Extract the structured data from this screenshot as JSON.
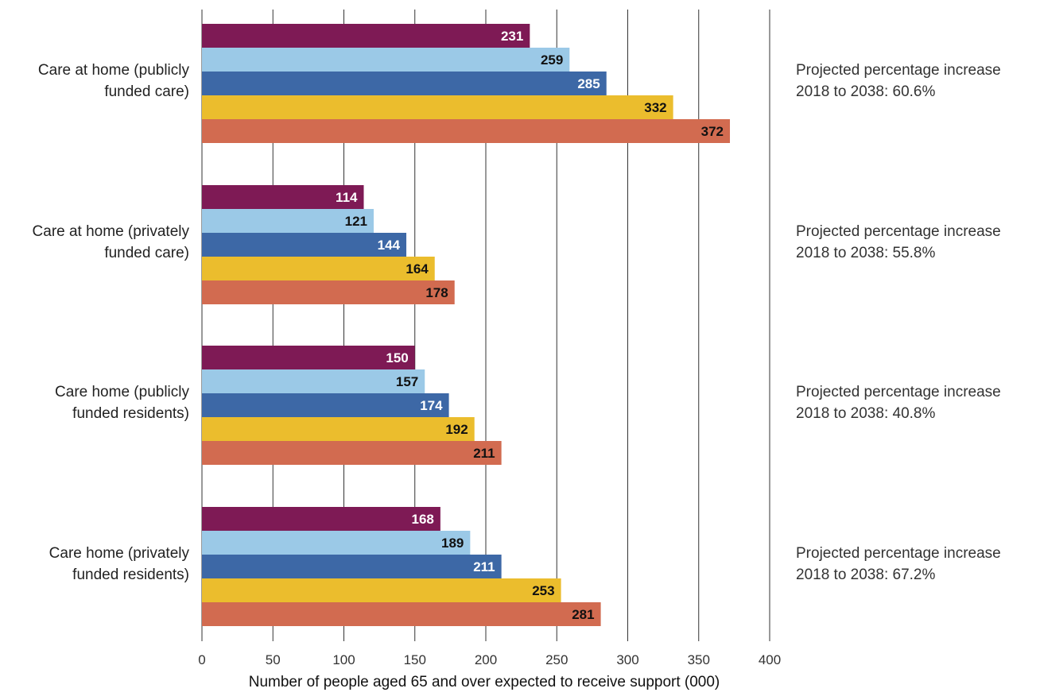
{
  "chart_data": {
    "type": "bar",
    "orientation": "horizontal",
    "title": "",
    "xlabel": "Number of people aged 65 and over expected to receive support (000)",
    "ylabel": "",
    "xlim": [
      0,
      400
    ],
    "xticks": [
      0,
      50,
      100,
      150,
      200,
      250,
      300,
      350,
      400
    ],
    "grid": "vertical",
    "legend": "none",
    "categories": [
      "Care at home (publicly funded care)",
      "Care at home (privately funded care)",
      "Care home (publicly funded residents)",
      "Care home (privately funded residents)"
    ],
    "category_label_lines": [
      [
        "Care at home (publicly",
        "funded care)"
      ],
      [
        "Care at home (privately",
        "funded care)"
      ],
      [
        "Care home (publicly",
        "funded residents)"
      ],
      [
        "Care home (privately",
        "funded residents)"
      ]
    ],
    "series": [
      {
        "color": "#7e1a55",
        "label_color": "#ffffff",
        "values": [
          231,
          114,
          150,
          168
        ]
      },
      {
        "color": "#9bc9e7",
        "label_color": "#111111",
        "values": [
          259,
          121,
          157,
          189
        ]
      },
      {
        "color": "#3d68a6",
        "label_color": "#ffffff",
        "values": [
          285,
          144,
          174,
          211
        ]
      },
      {
        "color": "#ebbd2d",
        "label_color": "#111111",
        "values": [
          332,
          164,
          192,
          253
        ]
      },
      {
        "color": "#d26b50",
        "label_color": "#111111",
        "values": [
          372,
          178,
          211,
          281
        ]
      }
    ],
    "annotations": [
      [
        "Projected percentage increase",
        "2018 to 2038: 60.6%"
      ],
      [
        "Projected percentage increase",
        "2018 to 2038: 55.8%"
      ],
      [
        "Projected percentage increase",
        "2018 to 2038: 40.8%"
      ],
      [
        "Projected percentage increase",
        "2018 to 2038: 67.2%"
      ]
    ]
  }
}
